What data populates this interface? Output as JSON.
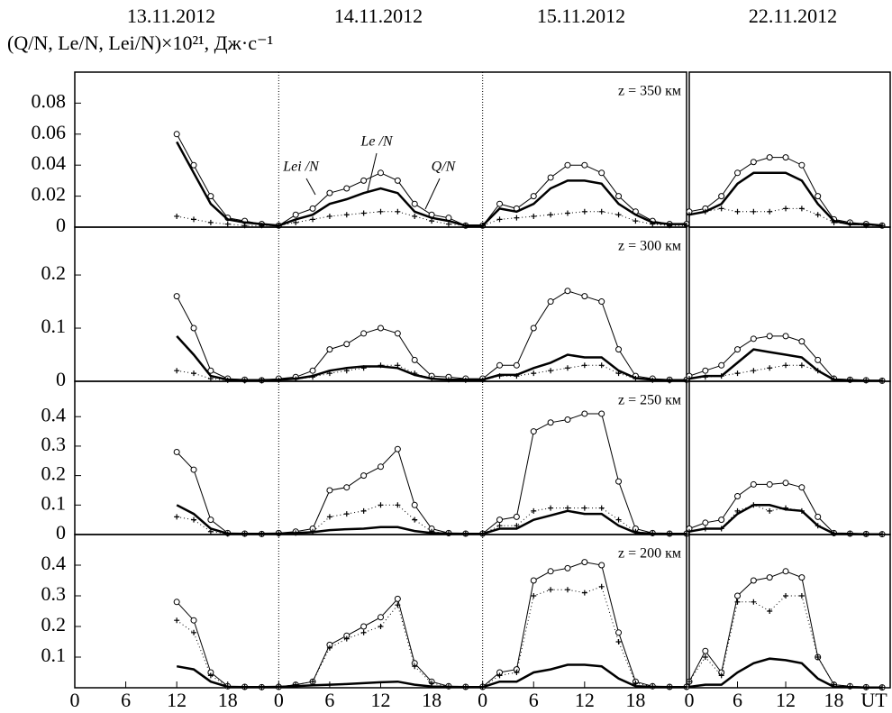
{
  "y_label": "(Q/N, Le/N, Lei/N)×10²¹, Дж·с⁻¹",
  "day_labels": [
    "13.11.2012",
    "14.11.2012",
    "15.11.2012",
    "22.11.2012"
  ],
  "chart_data": [
    {
      "type": "line",
      "annotation": "z = 350 км",
      "xlim": [
        0,
        72
      ],
      "ylim": [
        0,
        0.1
      ],
      "yticks": [
        0,
        0.02,
        0.04,
        0.06,
        0.08
      ],
      "day_boundaries": [
        24,
        48
      ],
      "x": [
        12,
        14,
        16,
        18,
        20,
        22,
        24,
        26,
        28,
        30,
        32,
        34,
        36,
        38,
        40,
        42,
        44,
        46,
        48,
        50,
        52,
        54,
        56,
        58,
        60,
        62,
        64,
        66,
        68,
        70,
        72
      ],
      "series": [
        {
          "name": "Q/N",
          "color": "#000000",
          "line_width": 1,
          "marker": "circle",
          "values": [
            0.06,
            0.04,
            0.02,
            0.006,
            0.004,
            0.002,
            0.001,
            0.008,
            0.012,
            0.022,
            0.025,
            0.03,
            0.035,
            0.03,
            0.015,
            0.008,
            0.006,
            0.001,
            0.001,
            0.015,
            0.012,
            0.02,
            0.032,
            0.04,
            0.04,
            0.035,
            0.02,
            0.01,
            0.004,
            0.002,
            0.002
          ]
        },
        {
          "name": "Le /N",
          "color": "#000000",
          "line_width": 2.5,
          "marker": "none",
          "values": [
            0.055,
            0.035,
            0.015,
            0.005,
            0.003,
            0.002,
            0.001,
            0.005,
            0.008,
            0.015,
            0.018,
            0.022,
            0.025,
            0.022,
            0.01,
            0.006,
            0.004,
            0.001,
            0.001,
            0.012,
            0.01,
            0.015,
            0.025,
            0.03,
            0.03,
            0.028,
            0.015,
            0.008,
            0.003,
            0.002,
            0.002
          ]
        },
        {
          "name": "Lei /N",
          "color": "#000000",
          "line_width": 1,
          "marker": "plus",
          "values": [
            0.007,
            0.005,
            0.003,
            0.002,
            0.001,
            0.001,
            0.001,
            0.003,
            0.005,
            0.007,
            0.008,
            0.009,
            0.01,
            0.01,
            0.007,
            0.004,
            0.002,
            0.001,
            0.001,
            0.005,
            0.006,
            0.007,
            0.008,
            0.009,
            0.01,
            0.01,
            0.008,
            0.004,
            0.002,
            0.001,
            0.001
          ]
        }
      ]
    },
    {
      "type": "line",
      "xlim": [
        0,
        25
      ],
      "ylim": [
        0,
        0.1
      ],
      "x": [
        0,
        2,
        4,
        6,
        8,
        10,
        12,
        14,
        16,
        18,
        20,
        22,
        24
      ],
      "series": [
        {
          "color": "#000000",
          "line_width": 1,
          "marker": "circle",
          "values": [
            0.01,
            0.012,
            0.02,
            0.035,
            0.042,
            0.045,
            0.045,
            0.04,
            0.02,
            0.005,
            0.003,
            0.002,
            0.001
          ]
        },
        {
          "color": "#000000",
          "line_width": 2.5,
          "marker": "none",
          "values": [
            0.008,
            0.01,
            0.015,
            0.028,
            0.035,
            0.035,
            0.035,
            0.03,
            0.015,
            0.004,
            0.002,
            0.002,
            0.001
          ]
        },
        {
          "color": "#000000",
          "line_width": 1,
          "marker": "plus",
          "values": [
            0.008,
            0.01,
            0.012,
            0.01,
            0.01,
            0.01,
            0.012,
            0.012,
            0.008,
            0.003,
            0.002,
            0.001,
            0.001
          ]
        }
      ]
    },
    {
      "type": "line",
      "annotation": "z = 300 км",
      "xlim": [
        0,
        72
      ],
      "ylim": [
        0,
        0.29
      ],
      "yticks": [
        0,
        0.1,
        0.2
      ],
      "day_boundaries": [
        24,
        48
      ],
      "x": [
        12,
        14,
        16,
        18,
        20,
        22,
        24,
        26,
        28,
        30,
        32,
        34,
        36,
        38,
        40,
        42,
        44,
        46,
        48,
        50,
        52,
        54,
        56,
        58,
        60,
        62,
        64,
        66,
        68,
        70,
        72
      ],
      "series": [
        {
          "color": "#000000",
          "line_width": 1,
          "marker": "circle",
          "values": [
            0.16,
            0.1,
            0.02,
            0.005,
            0.003,
            0.002,
            0.005,
            0.008,
            0.02,
            0.06,
            0.07,
            0.09,
            0.1,
            0.09,
            0.04,
            0.01,
            0.008,
            0.005,
            0.005,
            0.03,
            0.03,
            0.1,
            0.15,
            0.17,
            0.16,
            0.15,
            0.06,
            0.01,
            0.005,
            0.003,
            0.003
          ]
        },
        {
          "color": "#000000",
          "line_width": 2.5,
          "marker": "none",
          "values": [
            0.085,
            0.05,
            0.01,
            0.003,
            0.002,
            0.002,
            0.003,
            0.005,
            0.01,
            0.02,
            0.025,
            0.028,
            0.028,
            0.025,
            0.012,
            0.005,
            0.003,
            0.003,
            0.003,
            0.012,
            0.012,
            0.025,
            0.035,
            0.05,
            0.045,
            0.045,
            0.02,
            0.006,
            0.003,
            0.002,
            0.002
          ]
        },
        {
          "color": "#000000",
          "line_width": 1,
          "marker": "plus",
          "values": [
            0.02,
            0.015,
            0.005,
            0.002,
            0.001,
            0.001,
            0.002,
            0.004,
            0.008,
            0.015,
            0.02,
            0.025,
            0.03,
            0.03,
            0.015,
            0.005,
            0.003,
            0.002,
            0.002,
            0.01,
            0.01,
            0.015,
            0.02,
            0.025,
            0.03,
            0.03,
            0.015,
            0.005,
            0.002,
            0.001,
            0.001
          ]
        }
      ]
    },
    {
      "type": "line",
      "xlim": [
        0,
        25
      ],
      "ylim": [
        0,
        0.29
      ],
      "x": [
        0,
        2,
        4,
        6,
        8,
        10,
        12,
        14,
        16,
        18,
        20,
        22,
        24
      ],
      "series": [
        {
          "color": "#000000",
          "line_width": 1,
          "marker": "circle",
          "values": [
            0.01,
            0.02,
            0.03,
            0.06,
            0.08,
            0.085,
            0.085,
            0.075,
            0.04,
            0.005,
            0.003,
            0.002,
            0.001
          ]
        },
        {
          "color": "#000000",
          "line_width": 2.5,
          "marker": "none",
          "values": [
            0.005,
            0.01,
            0.01,
            0.035,
            0.06,
            0.055,
            0.05,
            0.045,
            0.02,
            0.003,
            0.002,
            0.001,
            0.001
          ]
        },
        {
          "color": "#000000",
          "line_width": 1,
          "marker": "plus",
          "values": [
            0.005,
            0.008,
            0.01,
            0.015,
            0.02,
            0.025,
            0.03,
            0.03,
            0.02,
            0.004,
            0.002,
            0.001,
            0.001
          ]
        }
      ]
    },
    {
      "type": "line",
      "annotation": "z = 250 км",
      "xlim": [
        0,
        72
      ],
      "ylim": [
        0,
        0.52
      ],
      "yticks": [
        0,
        0.1,
        0.2,
        0.3,
        0.4
      ],
      "day_boundaries": [
        24,
        48
      ],
      "x": [
        12,
        14,
        16,
        18,
        20,
        22,
        24,
        26,
        28,
        30,
        32,
        34,
        36,
        38,
        40,
        42,
        44,
        46,
        48,
        50,
        52,
        54,
        56,
        58,
        60,
        62,
        64,
        66,
        68,
        70,
        72
      ],
      "series": [
        {
          "color": "#000000",
          "line_width": 1,
          "marker": "circle",
          "values": [
            0.28,
            0.22,
            0.05,
            0.005,
            0.003,
            0.002,
            0.005,
            0.01,
            0.02,
            0.15,
            0.16,
            0.2,
            0.23,
            0.29,
            0.1,
            0.02,
            0.005,
            0.003,
            0.003,
            0.05,
            0.06,
            0.35,
            0.38,
            0.39,
            0.41,
            0.41,
            0.18,
            0.02,
            0.005,
            0.003,
            0.003
          ]
        },
        {
          "color": "#000000",
          "line_width": 2.5,
          "marker": "none",
          "values": [
            0.1,
            0.07,
            0.02,
            0.003,
            0.002,
            0.002,
            0.003,
            0.005,
            0.008,
            0.015,
            0.018,
            0.02,
            0.025,
            0.025,
            0.012,
            0.005,
            0.003,
            0.002,
            0.002,
            0.02,
            0.02,
            0.05,
            0.065,
            0.08,
            0.07,
            0.07,
            0.03,
            0.006,
            0.003,
            0.002,
            0.002
          ]
        },
        {
          "color": "#000000",
          "line_width": 1,
          "marker": "plus",
          "values": [
            0.06,
            0.05,
            0.01,
            0.002,
            0.001,
            0.001,
            0.002,
            0.005,
            0.01,
            0.06,
            0.07,
            0.08,
            0.1,
            0.1,
            0.05,
            0.01,
            0.003,
            0.002,
            0.002,
            0.03,
            0.03,
            0.08,
            0.09,
            0.09,
            0.09,
            0.09,
            0.05,
            0.01,
            0.003,
            0.002,
            0.002
          ]
        }
      ]
    },
    {
      "type": "line",
      "xlim": [
        0,
        25
      ],
      "ylim": [
        0,
        0.52
      ],
      "x": [
        0,
        2,
        4,
        6,
        8,
        10,
        12,
        14,
        16,
        18,
        20,
        22,
        24
      ],
      "series": [
        {
          "color": "#000000",
          "line_width": 1,
          "marker": "circle",
          "values": [
            0.02,
            0.04,
            0.05,
            0.13,
            0.17,
            0.17,
            0.175,
            0.16,
            0.06,
            0.005,
            0.003,
            0.002,
            0.001
          ]
        },
        {
          "color": "#000000",
          "line_width": 2.5,
          "marker": "none",
          "values": [
            0.01,
            0.02,
            0.02,
            0.07,
            0.1,
            0.1,
            0.085,
            0.08,
            0.03,
            0.003,
            0.002,
            0.001,
            0.001
          ]
        },
        {
          "color": "#000000",
          "line_width": 1,
          "marker": "plus",
          "values": [
            0.01,
            0.02,
            0.02,
            0.08,
            0.1,
            0.08,
            0.09,
            0.08,
            0.03,
            0.003,
            0.002,
            0.001,
            0.001
          ]
        }
      ]
    },
    {
      "type": "line",
      "annotation": "z = 200 км",
      "xlim": [
        0,
        72
      ],
      "ylim": [
        0,
        0.5
      ],
      "yticks": [
        0.1,
        0.2,
        0.3,
        0.4
      ],
      "day_boundaries": [
        24,
        48
      ],
      "xticks": [
        0,
        6,
        12,
        18,
        {
          "value": 24,
          "label": "0"
        },
        {
          "value": 30,
          "label": "6"
        },
        {
          "value": 36,
          "label": "12"
        },
        {
          "value": 42,
          "label": "18"
        },
        {
          "value": 48,
          "label": "0"
        },
        {
          "value": 54,
          "label": "6"
        },
        {
          "value": 60,
          "label": "12"
        },
        {
          "value": 66,
          "label": "18"
        }
      ],
      "x": [
        12,
        14,
        16,
        18,
        20,
        22,
        24,
        26,
        28,
        30,
        32,
        34,
        36,
        38,
        40,
        42,
        44,
        46,
        48,
        50,
        52,
        54,
        56,
        58,
        60,
        62,
        64,
        66,
        68,
        70,
        72
      ],
      "series": [
        {
          "color": "#000000",
          "line_width": 1,
          "marker": "circle",
          "values": [
            0.28,
            0.22,
            0.05,
            0.005,
            0.003,
            0.002,
            0.003,
            0.01,
            0.02,
            0.14,
            0.17,
            0.2,
            0.23,
            0.29,
            0.08,
            0.02,
            0.005,
            0.003,
            0.003,
            0.05,
            0.06,
            0.35,
            0.38,
            0.39,
            0.41,
            0.4,
            0.18,
            0.02,
            0.005,
            0.003,
            0.003
          ]
        },
        {
          "color": "#000000",
          "line_width": 2.5,
          "marker": "none",
          "values": [
            0.07,
            0.06,
            0.02,
            0.003,
            0.002,
            0.002,
            0.003,
            0.005,
            0.008,
            0.01,
            0.012,
            0.015,
            0.018,
            0.02,
            0.01,
            0.004,
            0.003,
            0.002,
            0.002,
            0.02,
            0.02,
            0.05,
            0.06,
            0.075,
            0.075,
            0.07,
            0.03,
            0.005,
            0.003,
            0.002,
            0.002
          ]
        },
        {
          "color": "#000000",
          "line_width": 1,
          "marker": "plus",
          "values": [
            0.22,
            0.18,
            0.04,
            0.004,
            0.002,
            0.002,
            0.003,
            0.01,
            0.02,
            0.13,
            0.16,
            0.18,
            0.2,
            0.27,
            0.07,
            0.015,
            0.004,
            0.003,
            0.003,
            0.04,
            0.05,
            0.3,
            0.32,
            0.32,
            0.31,
            0.33,
            0.15,
            0.015,
            0.004,
            0.003,
            0.003
          ]
        }
      ]
    },
    {
      "type": "line",
      "xlim": [
        0,
        25
      ],
      "ylim": [
        0,
        0.5
      ],
      "xticks": [
        0,
        6,
        12,
        18
      ],
      "x_unit": "UT",
      "x": [
        0,
        2,
        4,
        6,
        8,
        10,
        12,
        14,
        16,
        18,
        20,
        22,
        24
      ],
      "series": [
        {
          "color": "#000000",
          "line_width": 1,
          "marker": "circle",
          "values": [
            0.02,
            0.12,
            0.05,
            0.3,
            0.35,
            0.36,
            0.38,
            0.36,
            0.1,
            0.01,
            0.005,
            0.002,
            0.001
          ]
        },
        {
          "color": "#000000",
          "line_width": 2.5,
          "marker": "none",
          "values": [
            0.003,
            0.01,
            0.01,
            0.05,
            0.08,
            0.095,
            0.09,
            0.08,
            0.03,
            0.003,
            0.002,
            0.001,
            0.001
          ]
        },
        {
          "color": "#000000",
          "line_width": 1,
          "marker": "plus",
          "values": [
            0.02,
            0.1,
            0.04,
            0.28,
            0.28,
            0.25,
            0.3,
            0.3,
            0.1,
            0.01,
            0.004,
            0.002,
            0.001
          ]
        }
      ]
    }
  ]
}
